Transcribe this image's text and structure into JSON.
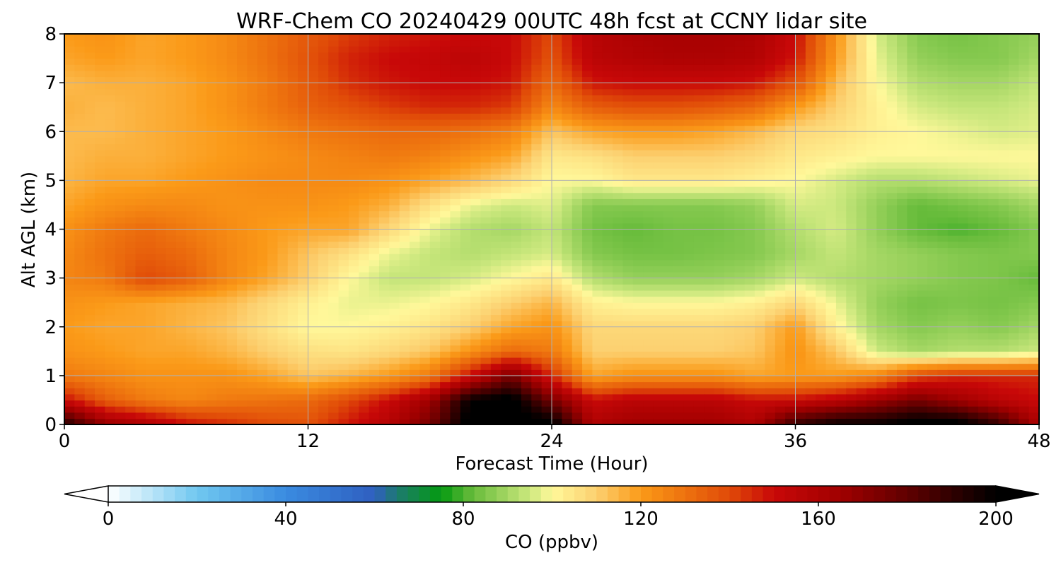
{
  "chart_data": {
    "type": "heatmap",
    "title": "WRF-Chem CO  20240429 00UTC 48h fcst at CCNY lidar site",
    "xlabel": "Forecast Time (Hour)",
    "ylabel": "Alt AGL (km)",
    "xlim": [
      0,
      48
    ],
    "ylim": [
      0,
      8
    ],
    "xticks": [
      0,
      12,
      24,
      36,
      48
    ],
    "yticks": [
      0,
      1,
      2,
      3,
      4,
      5,
      6,
      7,
      8
    ],
    "grid": true,
    "x": [
      0,
      2,
      4,
      6,
      8,
      10,
      12,
      14,
      16,
      18,
      20,
      22,
      24,
      26,
      28,
      30,
      32,
      34,
      36,
      38,
      40,
      42,
      44,
      46,
      48
    ],
    "y": [
      0,
      0.5,
      1,
      1.5,
      2,
      2.5,
      3,
      3.5,
      4,
      4.5,
      5,
      5.5,
      6,
      6.5,
      7,
      7.5,
      8
    ],
    "z": [
      [
        195,
        168,
        160,
        150,
        145,
        140,
        138,
        148,
        158,
        175,
        205,
        205,
        205,
        160,
        165,
        165,
        165,
        160,
        190,
        200,
        200,
        205,
        205,
        190,
        160
      ],
      [
        150,
        135,
        128,
        125,
        128,
        130,
        132,
        140,
        150,
        165,
        200,
        205,
        175,
        150,
        155,
        155,
        155,
        150,
        150,
        155,
        165,
        175,
        165,
        155,
        150
      ],
      [
        128,
        125,
        122,
        122,
        122,
        118,
        112,
        115,
        120,
        128,
        150,
        175,
        145,
        118,
        122,
        122,
        122,
        118,
        120,
        120,
        125,
        140,
        145,
        145,
        145
      ],
      [
        122,
        120,
        118,
        118,
        115,
        110,
        106,
        105,
        108,
        112,
        122,
        132,
        128,
        110,
        110,
        110,
        110,
        112,
        122,
        112,
        95,
        90,
        92,
        92,
        95
      ],
      [
        120,
        118,
        118,
        115,
        112,
        106,
        100,
        100,
        102,
        105,
        110,
        118,
        122,
        108,
        108,
        108,
        108,
        110,
        120,
        102,
        90,
        86,
        88,
        86,
        90
      ],
      [
        122,
        120,
        118,
        116,
        114,
        108,
        102,
        98,
        98,
        100,
        104,
        110,
        115,
        102,
        100,
        100,
        100,
        102,
        108,
        98,
        88,
        84,
        85,
        84,
        86
      ],
      [
        125,
        128,
        140,
        135,
        125,
        118,
        110,
        100,
        94,
        94,
        96,
        100,
        104,
        92,
        88,
        88,
        88,
        90,
        95,
        92,
        90,
        88,
        86,
        85,
        82
      ],
      [
        124,
        130,
        135,
        132,
        125,
        120,
        112,
        106,
        98,
        94,
        92,
        94,
        96,
        86,
        84,
        84,
        85,
        86,
        90,
        94,
        90,
        88,
        86,
        85,
        86
      ],
      [
        122,
        128,
        132,
        128,
        124,
        120,
        118,
        118,
        108,
        98,
        92,
        90,
        94,
        84,
        82,
        84,
        84,
        86,
        92,
        96,
        88,
        82,
        80,
        82,
        86
      ],
      [
        118,
        122,
        124,
        124,
        122,
        122,
        122,
        120,
        116,
        106,
        98,
        95,
        97,
        86,
        86,
        86,
        86,
        88,
        96,
        95,
        88,
        82,
        84,
        86,
        90
      ],
      [
        115,
        118,
        118,
        120,
        122,
        124,
        124,
        124,
        122,
        118,
        114,
        108,
        100,
        100,
        104,
        104,
        104,
        102,
        100,
        96,
        92,
        92,
        94,
        96,
        98
      ],
      [
        114,
        116,
        116,
        118,
        120,
        122,
        124,
        126,
        128,
        126,
        122,
        118,
        104,
        106,
        110,
        110,
        110,
        108,
        104,
        102,
        100,
        100,
        100,
        100,
        100
      ],
      [
        114,
        114,
        116,
        118,
        120,
        124,
        128,
        130,
        132,
        132,
        130,
        126,
        112,
        118,
        120,
        120,
        118,
        114,
        108,
        106,
        102,
        100,
        98,
        96,
        97
      ],
      [
        116,
        114,
        116,
        118,
        122,
        128,
        134,
        138,
        142,
        145,
        145,
        142,
        124,
        135,
        138,
        138,
        136,
        132,
        120,
        110,
        102,
        96,
        94,
        94,
        96
      ],
      [
        114,
        116,
        116,
        118,
        122,
        128,
        136,
        144,
        148,
        150,
        150,
        148,
        132,
        148,
        150,
        150,
        150,
        148,
        138,
        114,
        100,
        92,
        90,
        90,
        94
      ],
      [
        118,
        120,
        118,
        120,
        124,
        130,
        138,
        146,
        150,
        152,
        155,
        150,
        138,
        155,
        158,
        160,
        160,
        158,
        148,
        120,
        98,
        88,
        86,
        86,
        90
      ],
      [
        120,
        122,
        118,
        120,
        124,
        130,
        136,
        142,
        146,
        148,
        150,
        150,
        140,
        156,
        160,
        162,
        162,
        160,
        150,
        122,
        96,
        86,
        84,
        86,
        88
      ]
    ]
  },
  "colorbar": {
    "label": "CO  (ppbv)",
    "min": 0,
    "max": 200,
    "ticks": [
      0,
      40,
      80,
      120,
      160,
      200
    ],
    "extend": "both",
    "stops": [
      [
        0,
        "#ffffff"
      ],
      [
        20,
        "#70c8f0"
      ],
      [
        40,
        "#3a8be0"
      ],
      [
        60,
        "#2f5fc0"
      ],
      [
        65,
        "#1d7a70"
      ],
      [
        75,
        "#049a10"
      ],
      [
        82,
        "#66bb3a"
      ],
      [
        95,
        "#cce87e"
      ],
      [
        100,
        "#fff89a"
      ],
      [
        110,
        "#fcd070"
      ],
      [
        120,
        "#fb9a18"
      ],
      [
        128,
        "#f07a10"
      ],
      [
        140,
        "#e04a08"
      ],
      [
        150,
        "#c80808"
      ],
      [
        165,
        "#a00000"
      ],
      [
        180,
        "#600000"
      ],
      [
        195,
        "#180000"
      ],
      [
        200,
        "#000000"
      ]
    ]
  }
}
